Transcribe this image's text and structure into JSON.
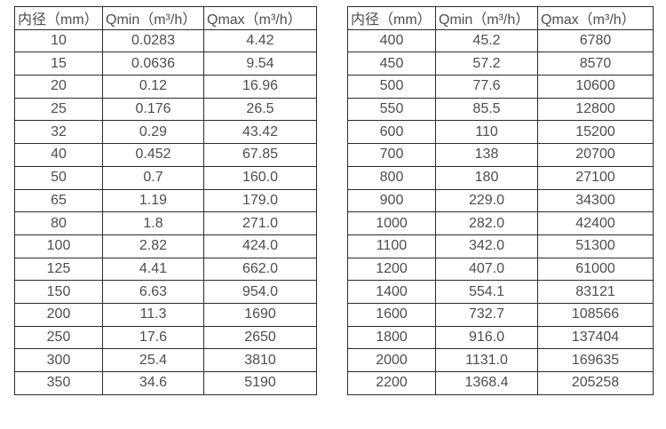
{
  "page": {
    "background_color": "#ffffff",
    "border_color": "#2b2b2b",
    "text_color": "#4d4d4d"
  },
  "chart_data": [
    {
      "type": "table",
      "title": "",
      "headers": [
        "内径（mm）",
        "Qmin（m³/h）",
        "Qmax（m³/h）"
      ],
      "rows": [
        [
          "10",
          "0.0283",
          "4.42"
        ],
        [
          "15",
          "0.0636",
          "9.54"
        ],
        [
          "20",
          "0.12",
          "16.96"
        ],
        [
          "25",
          "0.176",
          "26.5"
        ],
        [
          "32",
          "0.29",
          "43.42"
        ],
        [
          "40",
          "0.452",
          "67.85"
        ],
        [
          "50",
          "0.7",
          "160.0"
        ],
        [
          "65",
          "1.19",
          "179.0"
        ],
        [
          "80",
          "1.8",
          "271.0"
        ],
        [
          "100",
          "2.82",
          "424.0"
        ],
        [
          "125",
          "4.41",
          "662.0"
        ],
        [
          "150",
          "6.63",
          "954.0"
        ],
        [
          "200",
          "11.3",
          "1690"
        ],
        [
          "250",
          "17.6",
          "2650"
        ],
        [
          "300",
          "25.4",
          "3810"
        ],
        [
          "350",
          "34.6",
          "5190"
        ]
      ]
    },
    {
      "type": "table",
      "title": "",
      "headers": [
        "内径（mm）",
        "Qmin（m³/h）",
        "Qmax（m³/h）"
      ],
      "rows": [
        [
          "400",
          "45.2",
          "6780"
        ],
        [
          "450",
          "57.2",
          "8570"
        ],
        [
          "500",
          "77.6",
          "10600"
        ],
        [
          "550",
          "85.5",
          "12800"
        ],
        [
          "600",
          "110",
          "15200"
        ],
        [
          "700",
          "138",
          "20700"
        ],
        [
          "800",
          "180",
          "27100"
        ],
        [
          "900",
          "229.0",
          "34300"
        ],
        [
          "1000",
          "282.0",
          "42400"
        ],
        [
          "1100",
          "342.0",
          "51300"
        ],
        [
          "1200",
          "407.0",
          "61000"
        ],
        [
          "1400",
          "554.1",
          "83121"
        ],
        [
          "1600",
          "732.7",
          "108566"
        ],
        [
          "1800",
          "916.0",
          "137404"
        ],
        [
          "2000",
          "1131.0",
          "169635"
        ],
        [
          "2200",
          "1368.4",
          "205258"
        ]
      ]
    }
  ]
}
